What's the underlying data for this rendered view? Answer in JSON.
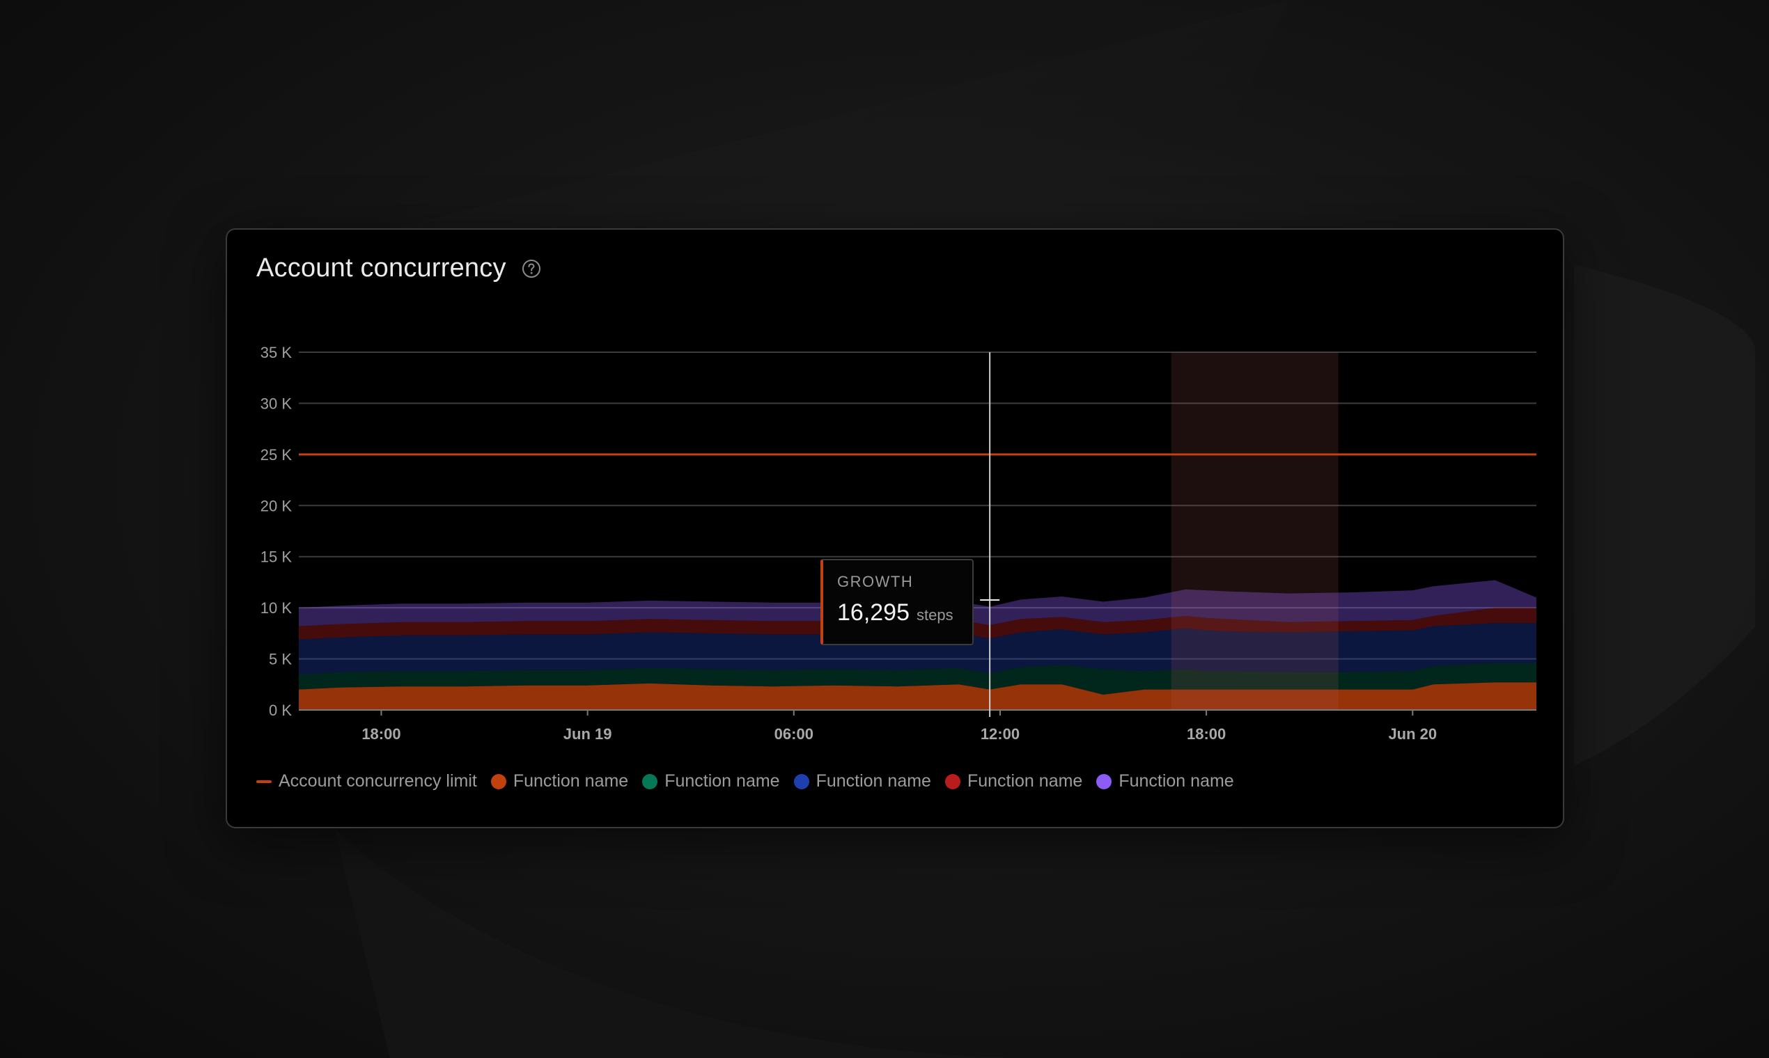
{
  "card": {
    "title": "Account concurrency"
  },
  "tooltip": {
    "label": "GROWTH",
    "value": "16,295",
    "unit": "steps"
  },
  "colors": {
    "limit": "#c2410c",
    "s1": "#c2410c",
    "s2": "#047857",
    "s3": "#1e40af",
    "s4": "#b91c1c",
    "s5": "#8b5cf6",
    "highlight": "#3a1f20"
  },
  "legend": [
    {
      "label": "Account concurrency limit",
      "kind": "line",
      "color": "#c2410c"
    },
    {
      "label": "Function name",
      "kind": "dot",
      "color": "#c2410c"
    },
    {
      "label": "Function name",
      "kind": "dot",
      "color": "#047857"
    },
    {
      "label": "Function name",
      "kind": "dot",
      "color": "#1e40af"
    },
    {
      "label": "Function name",
      "kind": "dot",
      "color": "#b91c1c"
    },
    {
      "label": "Function name",
      "kind": "dot",
      "color": "#8b5cf6"
    }
  ],
  "chart_data": {
    "type": "area",
    "stacked": true,
    "y_tick_labels": [
      "0 K",
      "5 K",
      "10 K",
      "15 K",
      "20 K",
      "25 K",
      "30 K",
      "35 K"
    ],
    "y_ticks": [
      0,
      5000,
      10000,
      15000,
      20000,
      25000,
      30000,
      35000
    ],
    "ylim": [
      0,
      35000
    ],
    "x_tick_labels": [
      "18:00",
      "Jun 19",
      "06:00",
      "12:00",
      "18:00",
      "Jun 20"
    ],
    "x_ticks": [
      2,
      12,
      22,
      32,
      42,
      52
    ],
    "xlim": [
      -2,
      58
    ],
    "grid": true,
    "legend_position": "bottom-left",
    "limit_line": {
      "name": "Account concurrency limit",
      "value": 25000
    },
    "crosshair_x": 31.5,
    "highlight_range": [
      40.3,
      48.4
    ],
    "x": [
      -2,
      0,
      3,
      6,
      9,
      12,
      15,
      18,
      21,
      24,
      27,
      30,
      31.5,
      33,
      35,
      37,
      39,
      41,
      42,
      43,
      46,
      49,
      52,
      53,
      56,
      58
    ],
    "series": [
      {
        "color": "#c2410c",
        "values": [
          2000,
          2200,
          2300,
          2300,
          2400,
          2400,
          2600,
          2400,
          2300,
          2400,
          2300,
          2500,
          2000,
          2500,
          2500,
          1500,
          2000,
          2000,
          2000,
          2000,
          2000,
          2000,
          2000,
          2500,
          2700,
          2700
        ]
      },
      {
        "color": "#047857",
        "values": [
          1500,
          1500,
          1500,
          1500,
          1500,
          1500,
          1500,
          1600,
          1600,
          1600,
          1600,
          1600,
          1600,
          1700,
          1900,
          2500,
          1800,
          2000,
          1800,
          1800,
          1700,
          1700,
          1800,
          1800,
          1900,
          1900
        ]
      },
      {
        "color": "#1e40af",
        "values": [
          3400,
          3400,
          3500,
          3500,
          3500,
          3500,
          3500,
          3500,
          3500,
          3400,
          3400,
          3400,
          3400,
          3400,
          3500,
          3400,
          3800,
          4000,
          4000,
          3900,
          3900,
          4000,
          4000,
          3900,
          3900,
          3900
        ]
      },
      {
        "color": "#b91c1c",
        "values": [
          1300,
          1300,
          1300,
          1300,
          1300,
          1300,
          1300,
          1300,
          1300,
          1300,
          1300,
          1300,
          1300,
          1300,
          1200,
          1200,
          1200,
          1200,
          1200,
          1200,
          1000,
          1000,
          1000,
          1000,
          1500,
          1500
        ]
      },
      {
        "color": "#8b5cf6",
        "values": [
          1800,
          1800,
          1800,
          1800,
          1800,
          1800,
          1800,
          1800,
          1800,
          1800,
          1800,
          1800,
          1800,
          1900,
          2000,
          2000,
          2200,
          2600,
          2700,
          2700,
          2800,
          2800,
          2900,
          2900,
          2700,
          1000
        ]
      }
    ]
  }
}
